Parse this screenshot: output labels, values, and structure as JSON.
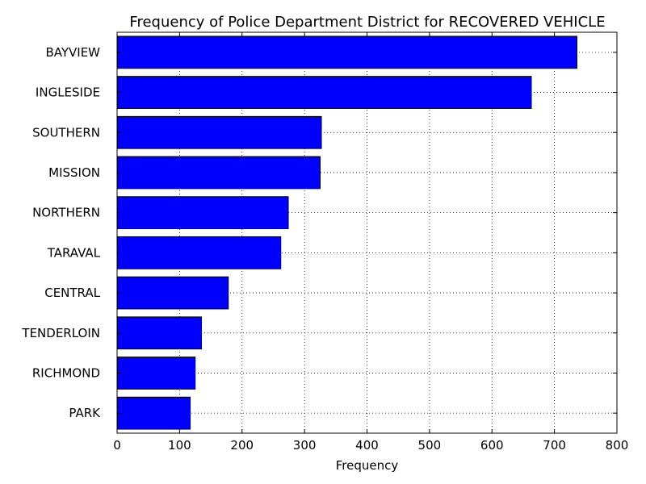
{
  "chart_data": {
    "type": "bar",
    "orientation": "horizontal",
    "title": "Frequency of Police Department District for RECOVERED VEHICLE",
    "xlabel": "Frequency",
    "ylabel": "",
    "categories": [
      "BAYVIEW",
      "INGLESIDE",
      "SOUTHERN",
      "MISSION",
      "NORTHERN",
      "TARAVAL",
      "CENTRAL",
      "TENDERLOIN",
      "RICHMOND",
      "PARK"
    ],
    "values": [
      736,
      663,
      327,
      325,
      274,
      262,
      178,
      135,
      125,
      117
    ],
    "xlim": [
      0,
      800
    ],
    "xticks": [
      0,
      100,
      200,
      300,
      400,
      500,
      600,
      700,
      800
    ],
    "grid": true,
    "bar_color": "#0000ff",
    "legend": "none"
  }
}
